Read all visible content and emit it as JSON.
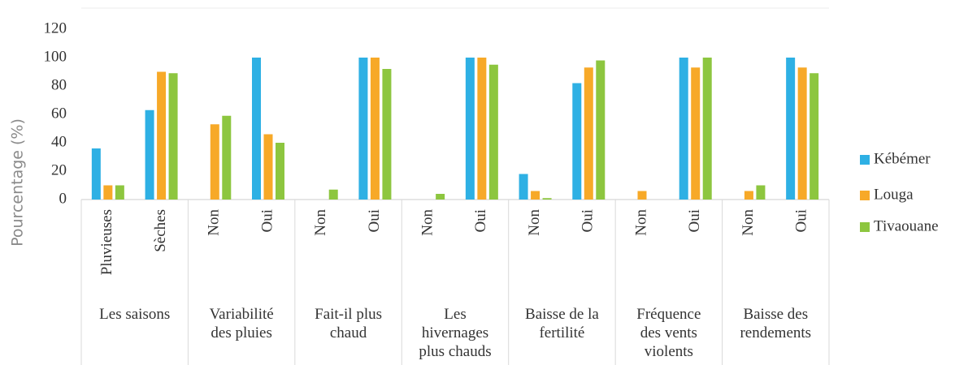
{
  "chart_data": {
    "type": "bar",
    "y_label": "Pourcentage (%)",
    "categories": [
      "Pluvieuses",
      "Sèches",
      "Non",
      "Oui",
      "Non",
      "Oui",
      "Non",
      "Oui",
      "Non",
      "Oui",
      "Non",
      "Oui",
      "Non",
      "Oui"
    ],
    "groups": [
      "Les saisons",
      "Variabilité des pluies",
      "Fait-il plus chaud",
      "Les hivernages plus chauds",
      "Baisse de la fertilité",
      "Fréquence des vents violents",
      "Baisse des rendements"
    ],
    "series": [
      {
        "name": "Kébémer",
        "color": "#2eb0e4",
        "values": [
          36,
          63,
          0,
          100,
          0,
          100,
          0,
          100,
          18,
          82,
          0,
          100,
          0,
          100
        ]
      },
      {
        "name": "Louga",
        "color": "#f7a928",
        "values": [
          10,
          90,
          53,
          46,
          0,
          100,
          0,
          100,
          6,
          93,
          6,
          93,
          6,
          93
        ]
      },
      {
        "name": "Tivaouane",
        "color": "#8dc63f",
        "values": [
          10,
          89,
          59,
          40,
          7,
          92,
          4,
          95,
          1,
          98,
          0,
          100,
          10,
          89
        ]
      }
    ],
    "ylim": [
      0,
      120
    ],
    "yticks": [
      0,
      20,
      40,
      60,
      80,
      100,
      120
    ],
    "grid": false,
    "legend": "right"
  }
}
